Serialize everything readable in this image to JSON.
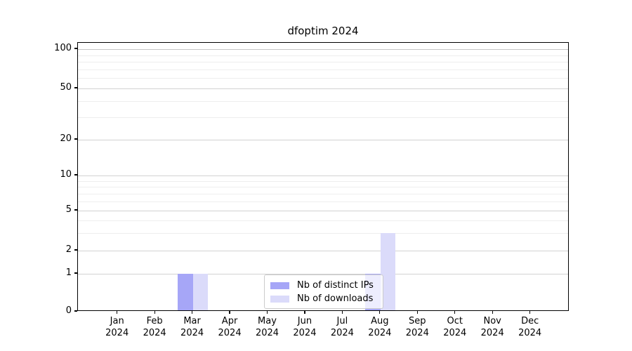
{
  "chart_data": {
    "type": "bar",
    "title": "dfoptim 2024",
    "categories": [
      "Jan 2024",
      "Feb 2024",
      "Mar 2024",
      "Apr 2024",
      "May 2024",
      "Jun 2024",
      "Jul 2024",
      "Aug 2024",
      "Sep 2024",
      "Oct 2024",
      "Nov 2024",
      "Dec 2024"
    ],
    "series": [
      {
        "name": "Nb of distinct IPs",
        "color": "#a6a6f7",
        "values": [
          0,
          0,
          1,
          0,
          0,
          0,
          0,
          1,
          0,
          0,
          0,
          0
        ]
      },
      {
        "name": "Nb of downloads",
        "color": "#dbdbfa",
        "values": [
          0,
          0,
          1,
          0,
          0,
          0,
          0,
          3,
          0,
          0,
          0,
          0
        ]
      }
    ],
    "xlabel": "",
    "ylabel": "",
    "y_axis": {
      "scale": "symlog",
      "major_ticks": [
        0,
        1,
        2,
        5,
        10,
        20,
        50,
        100
      ],
      "minor_gridlines": [
        3,
        4,
        6,
        7,
        8,
        9,
        30,
        40,
        60,
        70,
        80,
        90
      ],
      "ylim": [
        0,
        112
      ]
    },
    "grid": {
      "enabled": true,
      "major_color": "#d2d2d2",
      "minor_color": "#eeeeee"
    },
    "legend": {
      "location": "lower center inside plot",
      "background": "rgba(255,255,255,0.8)",
      "border_color": "#cccccc"
    }
  }
}
